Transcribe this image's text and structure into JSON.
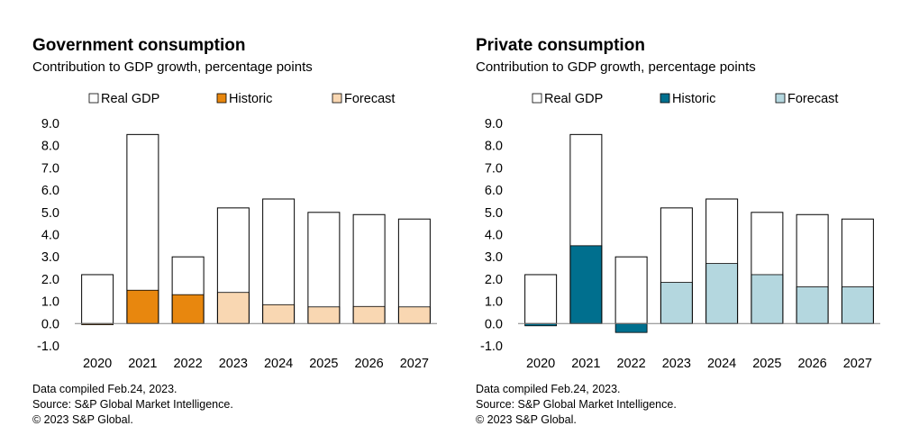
{
  "charts": [
    {
      "title": "Government consumption",
      "subtitle": "Contribution to GDP growth, percentage points",
      "footer": [
        "Data compiled Feb.24, 2023.",
        "Source: S&P Global Market Intelligence.",
        "© 2023 S&P Global."
      ],
      "colors": {
        "historic": "#E8870E",
        "forecast": "#F9D7B2",
        "real_gdp": "#FFFFFF",
        "outline": "#000000"
      },
      "chart_data": {
        "type": "bar",
        "categories": [
          "2020",
          "2021",
          "2022",
          "2023",
          "2024",
          "2025",
          "2026",
          "2027"
        ],
        "series": [
          {
            "name": "Real GDP",
            "values": [
              2.2,
              8.5,
              3.0,
              5.2,
              5.6,
              5.0,
              4.9,
              4.7
            ]
          },
          {
            "name": "Historic",
            "values": [
              -0.05,
              1.5,
              1.3,
              null,
              null,
              null,
              null,
              null
            ]
          },
          {
            "name": "Forecast",
            "values": [
              null,
              null,
              null,
              1.4,
              0.85,
              0.75,
              0.77,
              0.75
            ]
          }
        ],
        "ylim": [
          -1.0,
          9.0
        ],
        "yticks": [
          "-1.0",
          "0.0",
          "1.0",
          "2.0",
          "3.0",
          "4.0",
          "5.0",
          "6.0",
          "7.0",
          "8.0",
          "9.0"
        ],
        "legend": [
          "Real GDP",
          "Historic",
          "Forecast"
        ],
        "legend_position": "top",
        "grid": false
      }
    },
    {
      "title": "Private consumption",
      "subtitle": "Contribution to GDP growth, percentage points",
      "footer": [
        "Data compiled Feb.24, 2023.",
        "Source: S&P Global Market Intelligence.",
        "© 2023 S&P Global."
      ],
      "colors": {
        "historic": "#006F8E",
        "forecast": "#B4D7DF",
        "real_gdp": "#FFFFFF",
        "outline": "#000000"
      },
      "chart_data": {
        "type": "bar",
        "categories": [
          "2020",
          "2021",
          "2022",
          "2023",
          "2024",
          "2025",
          "2026",
          "2027"
        ],
        "series": [
          {
            "name": "Real GDP",
            "values": [
              2.2,
              8.5,
              3.0,
              5.2,
              5.6,
              5.0,
              4.9,
              4.7
            ]
          },
          {
            "name": "Historic",
            "values": [
              -0.1,
              3.5,
              -0.4,
              null,
              null,
              null,
              null,
              null
            ]
          },
          {
            "name": "Forecast",
            "values": [
              null,
              null,
              null,
              1.85,
              2.7,
              2.2,
              1.65,
              1.65
            ]
          }
        ],
        "ylim": [
          -1.0,
          9.0
        ],
        "yticks": [
          "-1.0",
          "0.0",
          "1.0",
          "2.0",
          "3.0",
          "4.0",
          "5.0",
          "6.0",
          "7.0",
          "8.0",
          "9.0"
        ],
        "legend": [
          "Real GDP",
          "Historic",
          "Forecast"
        ],
        "legend_position": "top",
        "grid": false
      }
    }
  ]
}
